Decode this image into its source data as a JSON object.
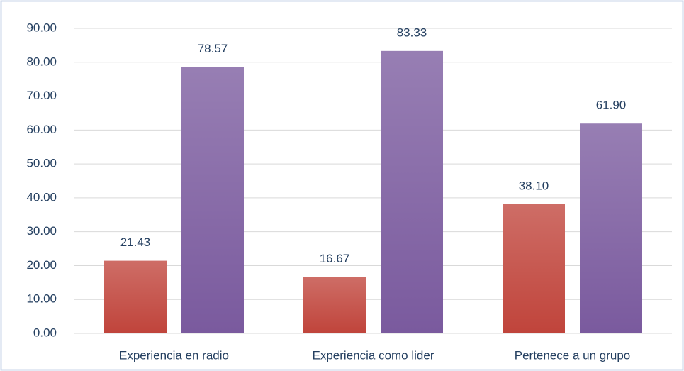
{
  "chart_data": {
    "type": "bar",
    "categories": [
      "Experiencia en radio",
      "Experiencia como lider",
      "Pertenece a un grupo"
    ],
    "series": [
      {
        "color": "#c0443b",
        "values": [
          21.43,
          16.67,
          38.1
        ],
        "value_labels": [
          "21.43",
          "16.67",
          "38.10"
        ]
      },
      {
        "color": "#7a5a9e",
        "values": [
          78.57,
          83.33,
          61.9
        ],
        "value_labels": [
          "78.57",
          "83.33",
          "61.90"
        ]
      }
    ],
    "ylim": [
      0,
      90
    ],
    "yticks": [
      {
        "value": 0,
        "label": "0.00"
      },
      {
        "value": 10,
        "label": "10.00"
      },
      {
        "value": 20,
        "label": "20.00"
      },
      {
        "value": 30,
        "label": "30.00"
      },
      {
        "value": 40,
        "label": "40.00"
      },
      {
        "value": 50,
        "label": "50.00"
      },
      {
        "value": 60,
        "label": "60.00"
      },
      {
        "value": 70,
        "label": "70.00"
      },
      {
        "value": 80,
        "label": "80.00"
      },
      {
        "value": 90,
        "label": "90.00"
      }
    ],
    "grid": true
  }
}
